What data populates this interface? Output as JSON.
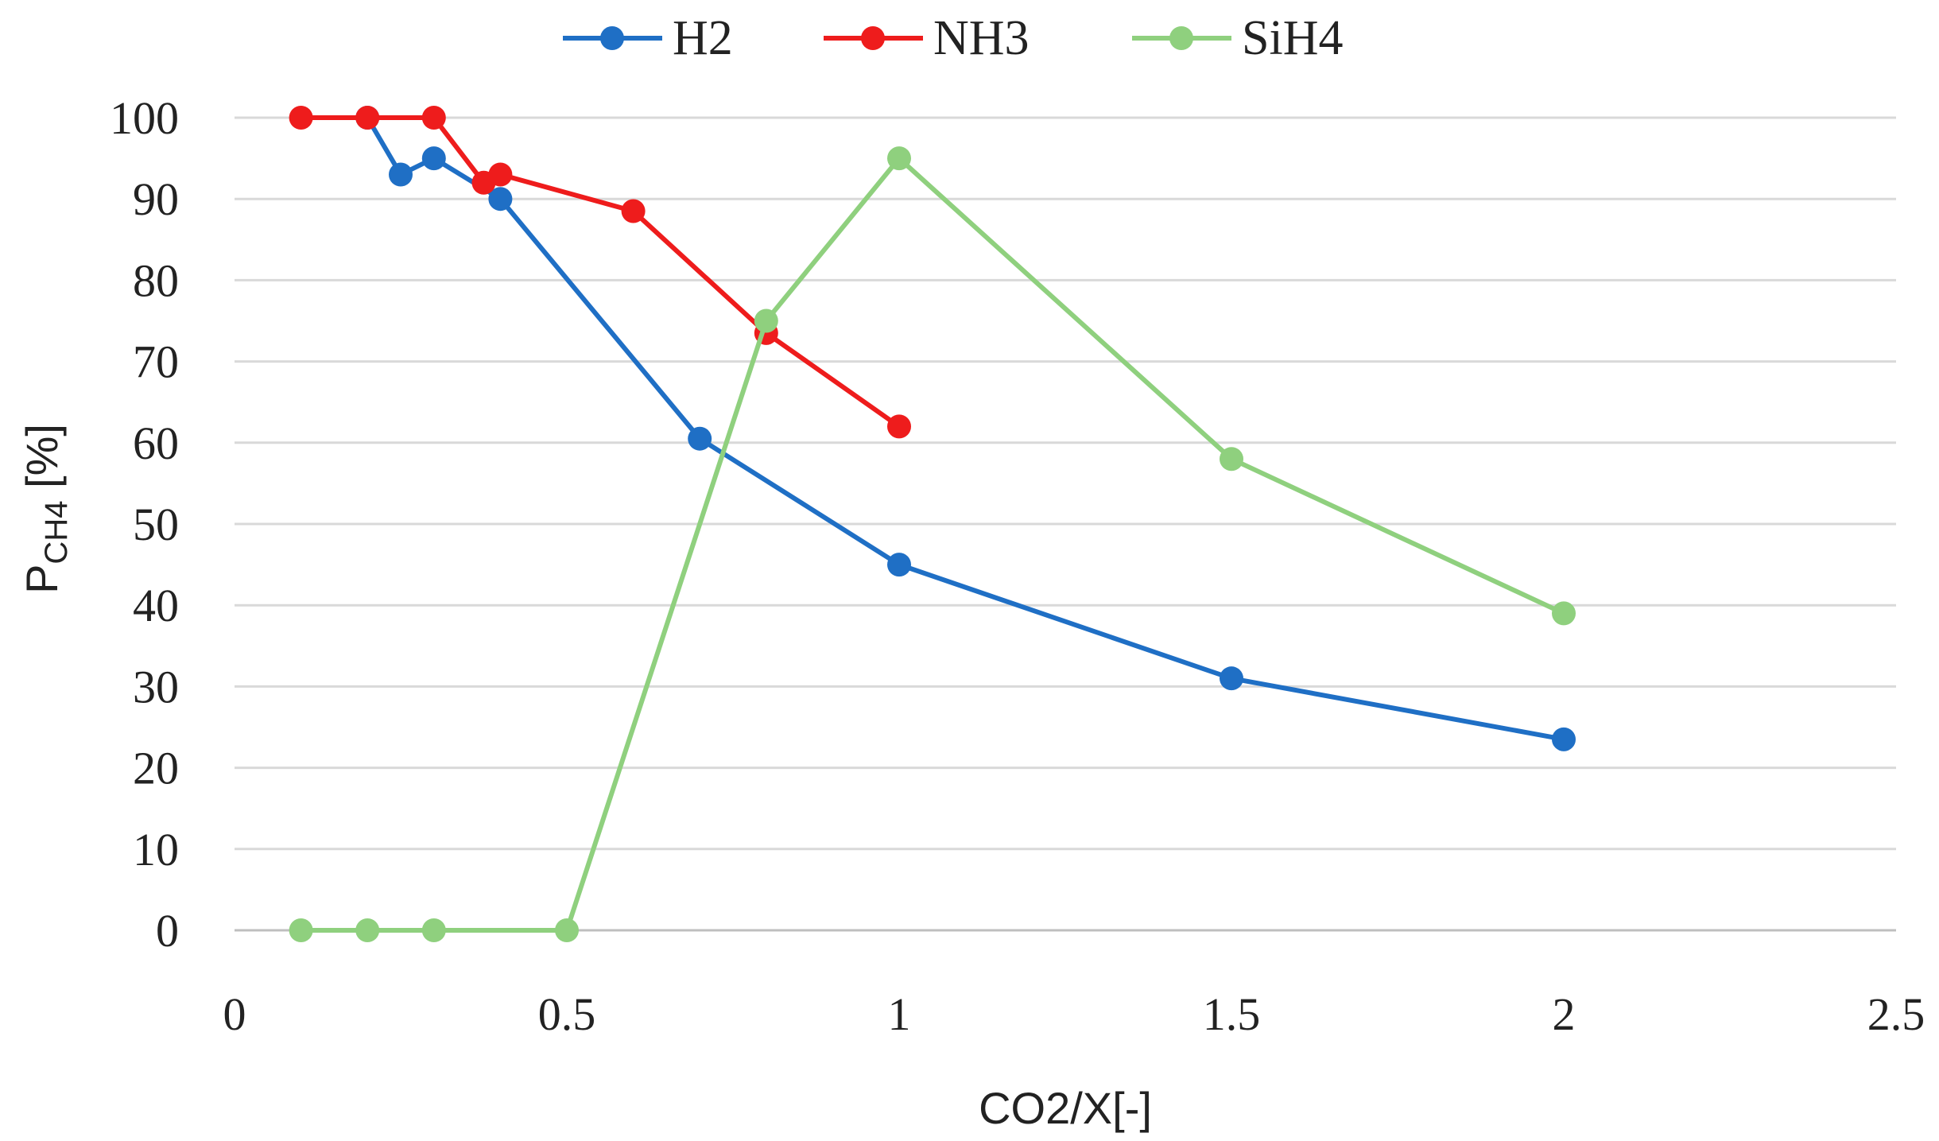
{
  "chart_data": {
    "type": "line",
    "title": "",
    "xlabel": "CO2/X[-]",
    "ylabel": {
      "main": "P",
      "subscript": "CH4",
      "unit": " [%]"
    },
    "xlim": [
      0,
      2.5
    ],
    "ylim": [
      0,
      100
    ],
    "x_ticks": [
      "0",
      "0.5",
      "1",
      "1.5",
      "2",
      "2.5"
    ],
    "y_ticks": [
      "0",
      "10",
      "20",
      "30",
      "40",
      "50",
      "60",
      "70",
      "80",
      "90",
      "100"
    ],
    "grid": "horizontal",
    "legend_position": "top",
    "series": [
      {
        "name": "H2",
        "color": "#1f6fc5",
        "points": [
          {
            "x": 0.2,
            "y": 100
          },
          {
            "x": 0.25,
            "y": 93
          },
          {
            "x": 0.3,
            "y": 95
          },
          {
            "x": 0.4,
            "y": 90
          },
          {
            "x": 0.7,
            "y": 60.5
          },
          {
            "x": 1.0,
            "y": 45
          },
          {
            "x": 1.5,
            "y": 31
          },
          {
            "x": 2.0,
            "y": 23.5
          }
        ]
      },
      {
        "name": "NH3",
        "color": "#ee1c1c",
        "points": [
          {
            "x": 0.1,
            "y": 100
          },
          {
            "x": 0.2,
            "y": 100
          },
          {
            "x": 0.3,
            "y": 100
          },
          {
            "x": 0.375,
            "y": 92
          },
          {
            "x": 0.4,
            "y": 93
          },
          {
            "x": 0.6,
            "y": 88.5
          },
          {
            "x": 0.8,
            "y": 73.5
          },
          {
            "x": 1.0,
            "y": 62
          }
        ]
      },
      {
        "name": "SiH4",
        "color": "#8fd07e",
        "points": [
          {
            "x": 0.1,
            "y": 0
          },
          {
            "x": 0.2,
            "y": 0
          },
          {
            "x": 0.3,
            "y": 0
          },
          {
            "x": 0.5,
            "y": 0
          },
          {
            "x": 0.8,
            "y": 75
          },
          {
            "x": 1.0,
            "y": 95
          },
          {
            "x": 1.5,
            "y": 58
          },
          {
            "x": 2.0,
            "y": 39
          }
        ]
      }
    ]
  }
}
